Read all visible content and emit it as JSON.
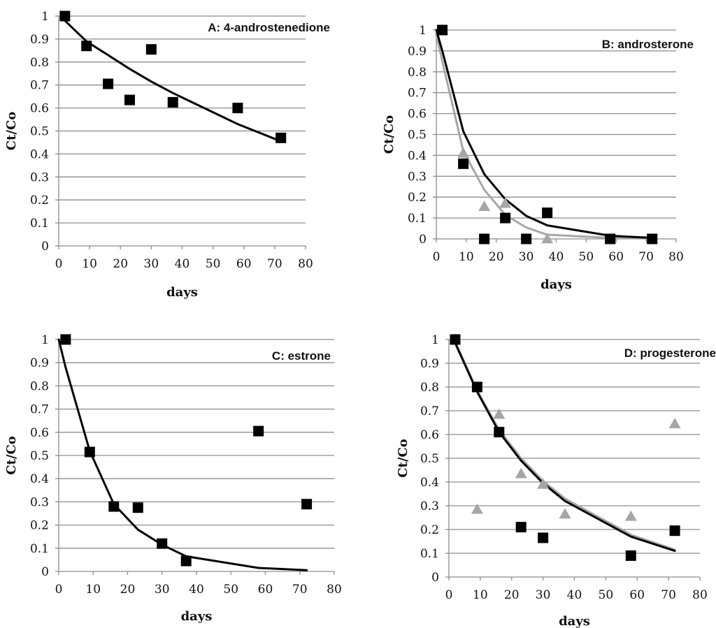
{
  "chart_data": [
    {
      "type": "scatter",
      "title": "A: 4-androstenedione",
      "xlabel": "days",
      "ylabel": "Ct/Co",
      "xlim": [
        0,
        80
      ],
      "ylim": [
        0,
        1
      ],
      "xticks": [
        "0",
        "10",
        "20",
        "30",
        "40",
        "50",
        "60",
        "70",
        "80"
      ],
      "yticks": [
        "0",
        "0.1",
        "0.2",
        "0.3",
        "0.4",
        "0.5",
        "0.6",
        "0.7",
        "0.8",
        "0.9",
        "1"
      ],
      "grid": "horizontal",
      "colors": {
        "black": "#000000",
        "gray": "#a6a6a6"
      },
      "series": [
        {
          "marker": "square",
          "color": "#000000",
          "x": [
            2,
            9,
            16,
            23,
            30,
            37,
            58,
            72
          ],
          "y": [
            1.0,
            0.87,
            0.705,
            0.635,
            0.855,
            0.625,
            0.6,
            0.47
          ]
        },
        {
          "line": true,
          "color": "#000000",
          "x": [
            2,
            9,
            16,
            23,
            30,
            37,
            58,
            72
          ],
          "y": [
            0.98,
            0.89,
            0.83,
            0.77,
            0.715,
            0.665,
            0.53,
            0.455
          ]
        }
      ]
    },
    {
      "type": "scatter",
      "title": "B: androsterone",
      "xlabel": "days",
      "ylabel": "Ct/Co",
      "xlim": [
        0,
        80
      ],
      "ylim": [
        0,
        1
      ],
      "xticks": [
        "0",
        "10",
        "20",
        "30",
        "40",
        "50",
        "60",
        "70",
        "80"
      ],
      "yticks": [
        "0",
        "0.1",
        "0.2",
        "0.3",
        "0.4",
        "0.5",
        "0.6",
        "0.7",
        "0.8",
        "0.9",
        "1"
      ],
      "grid": "horizontal",
      "series": [
        {
          "marker": "square",
          "color": "#000000",
          "x": [
            2,
            9,
            16,
            23,
            30,
            37,
            58,
            72
          ],
          "y": [
            1.0,
            0.36,
            0.0,
            0.1,
            0.0,
            0.125,
            0.0,
            0.0
          ]
        },
        {
          "marker": "triangle",
          "color": "#a6a6a6",
          "x": [
            2,
            9,
            16,
            23,
            30,
            37,
            58,
            72
          ],
          "y": [
            1.0,
            0.41,
            0.155,
            0.17,
            0.0,
            0.0,
            0.0,
            0.0
          ]
        },
        {
          "line": true,
          "color": "#000000",
          "x": [
            0,
            2,
            9,
            16,
            23,
            30,
            37,
            58,
            72
          ],
          "y": [
            1.0,
            0.9,
            0.515,
            0.31,
            0.19,
            0.11,
            0.065,
            0.015,
            0.005
          ]
        },
        {
          "line": true,
          "color": "#a6a6a6",
          "x": [
            0,
            2,
            9,
            16,
            23,
            30,
            37,
            58,
            72
          ],
          "y": [
            0.98,
            0.85,
            0.42,
            0.235,
            0.115,
            0.055,
            0.02,
            0.005,
            0.002
          ]
        }
      ]
    },
    {
      "type": "scatter",
      "title": "C: estrone",
      "xlabel": "days",
      "ylabel": "Ct/Co",
      "xlim": [
        0,
        80
      ],
      "ylim": [
        0,
        1
      ],
      "xticks": [
        "0",
        "10",
        "20",
        "30",
        "40",
        "50",
        "60",
        "70",
        "80"
      ],
      "yticks": [
        "0",
        "0.1",
        "0.2",
        "0.3",
        "0.4",
        "0.5",
        "0.6",
        "0.7",
        "0.8",
        "0.9",
        "1"
      ],
      "grid": "horizontal",
      "series": [
        {
          "marker": "square",
          "color": "#000000",
          "x": [
            2,
            9,
            16,
            23,
            30,
            37,
            58,
            72
          ],
          "y": [
            1.0,
            0.515,
            0.28,
            0.275,
            0.12,
            0.045,
            0.605,
            0.29
          ]
        },
        {
          "line": true,
          "color": "#000000",
          "x": [
            0,
            2,
            9,
            16,
            23,
            30,
            37,
            58,
            72
          ],
          "y": [
            1.0,
            0.88,
            0.52,
            0.29,
            0.18,
            0.115,
            0.065,
            0.015,
            0.005
          ]
        }
      ]
    },
    {
      "type": "scatter",
      "title": "D: progesterone",
      "xlabel": "days",
      "ylabel": "Ct/Co",
      "xlim": [
        0,
        80
      ],
      "ylim": [
        0,
        1
      ],
      "xticks": [
        "0",
        "10",
        "20",
        "30",
        "40",
        "50",
        "60",
        "70",
        "80"
      ],
      "yticks": [
        "0",
        "0.1",
        "0.2",
        "0.3",
        "0.4",
        "0.5",
        "0.6",
        "0.7",
        "0.8",
        "0.9",
        "1"
      ],
      "grid": "horizontal",
      "series": [
        {
          "marker": "square",
          "color": "#000000",
          "x": [
            2,
            9,
            16,
            23,
            30,
            58,
            72
          ],
          "y": [
            1.0,
            0.8,
            0.61,
            0.21,
            0.165,
            0.09,
            0.195
          ]
        },
        {
          "marker": "triangle",
          "color": "#a6a6a6",
          "x": [
            2,
            9,
            16,
            23,
            30,
            37,
            58,
            72
          ],
          "y": [
            1.0,
            0.285,
            0.685,
            0.435,
            0.39,
            0.265,
            0.255,
            0.645
          ]
        },
        {
          "line": true,
          "color": "#000000",
          "x": [
            2,
            9,
            16,
            23,
            30,
            37,
            58,
            72
          ],
          "y": [
            0.985,
            0.78,
            0.61,
            0.49,
            0.395,
            0.32,
            0.17,
            0.11
          ]
        },
        {
          "line": true,
          "color": "#a6a6a6",
          "x": [
            2,
            9,
            16,
            23,
            30,
            37,
            58,
            72
          ],
          "y": [
            0.99,
            0.785,
            0.62,
            0.5,
            0.405,
            0.33,
            0.178,
            0.115
          ]
        }
      ]
    }
  ]
}
